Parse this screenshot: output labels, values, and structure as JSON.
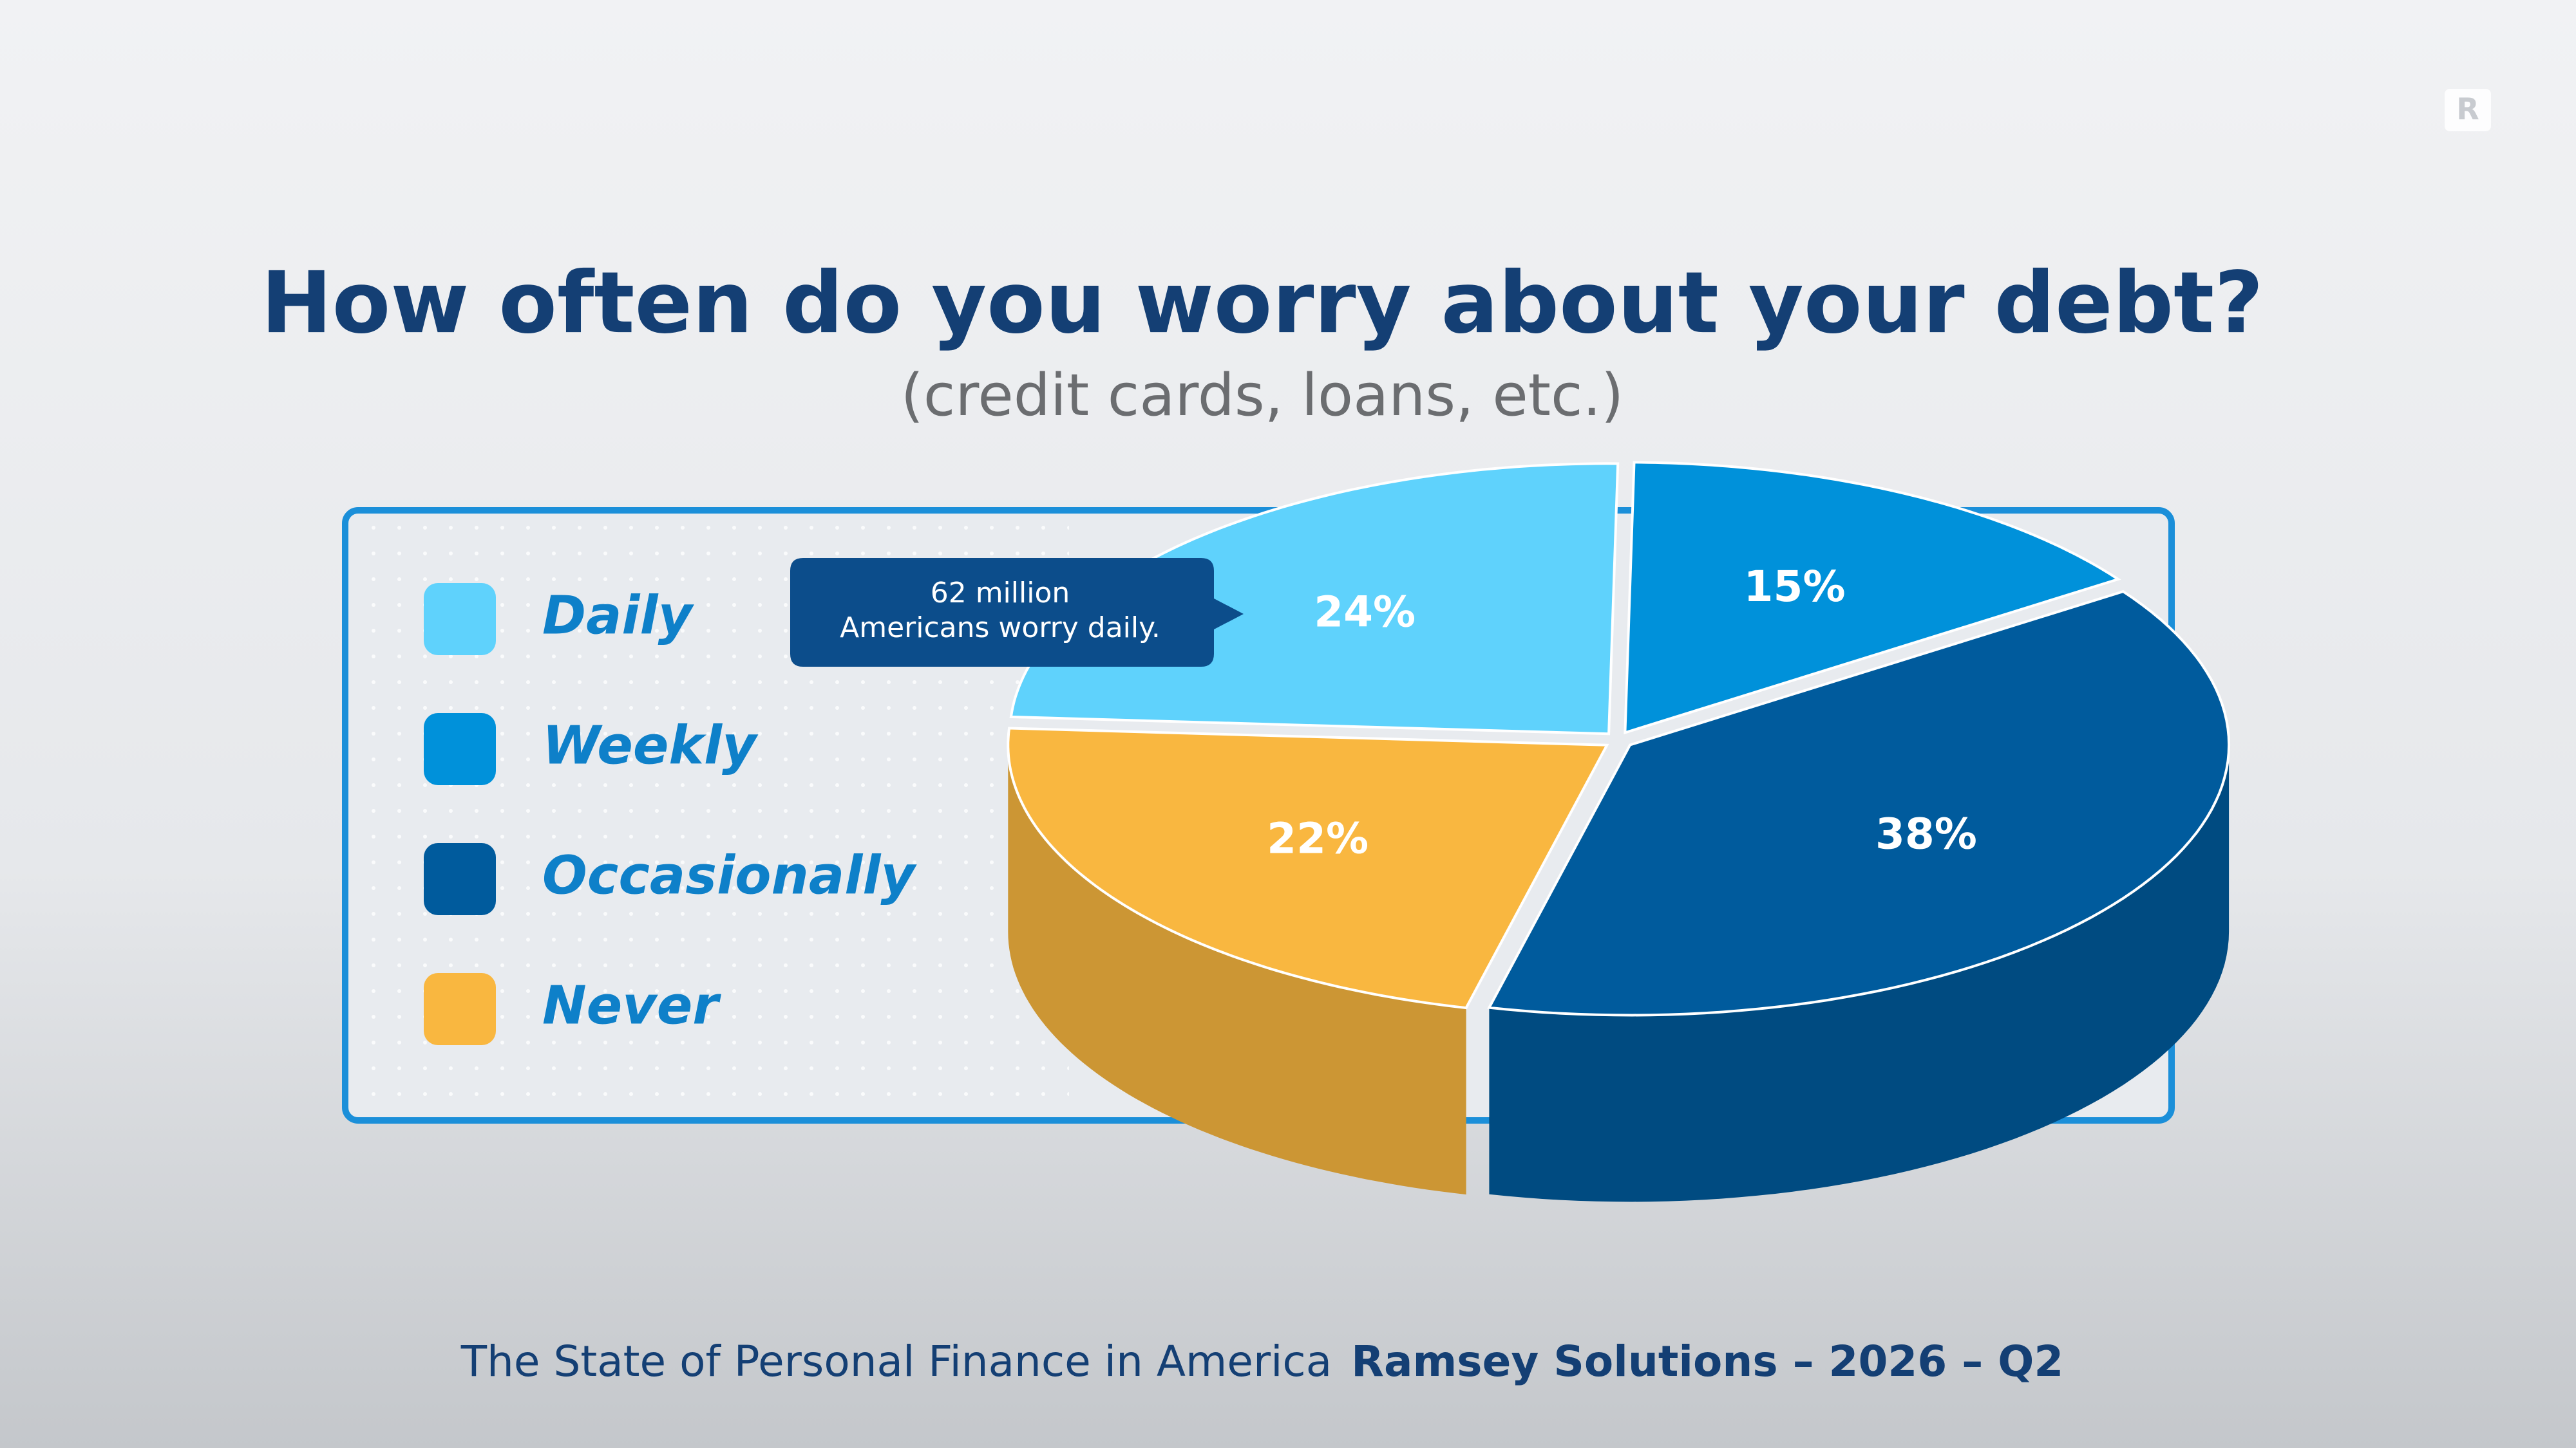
{
  "chart_data": {
    "type": "pie",
    "title": "How often do you worry about your debt?",
    "subtitle": "(credit cards, loans, etc.)",
    "categories": [
      "Daily",
      "Weekly",
      "Occasionally",
      "Never"
    ],
    "values": [
      24,
      15,
      38,
      22
    ],
    "value_labels": [
      "24%",
      "15%",
      "38%",
      "22%"
    ],
    "colors": [
      "#5fd2fc",
      "#0091da",
      "#005b9d",
      "#f9b740"
    ],
    "annotation": [
      "62 million",
      "Americans worry daily."
    ],
    "footer": [
      "The State of Personal Finance in America",
      "Ramsey Solutions – 2026 – Q2"
    ],
    "logo": "R"
  }
}
